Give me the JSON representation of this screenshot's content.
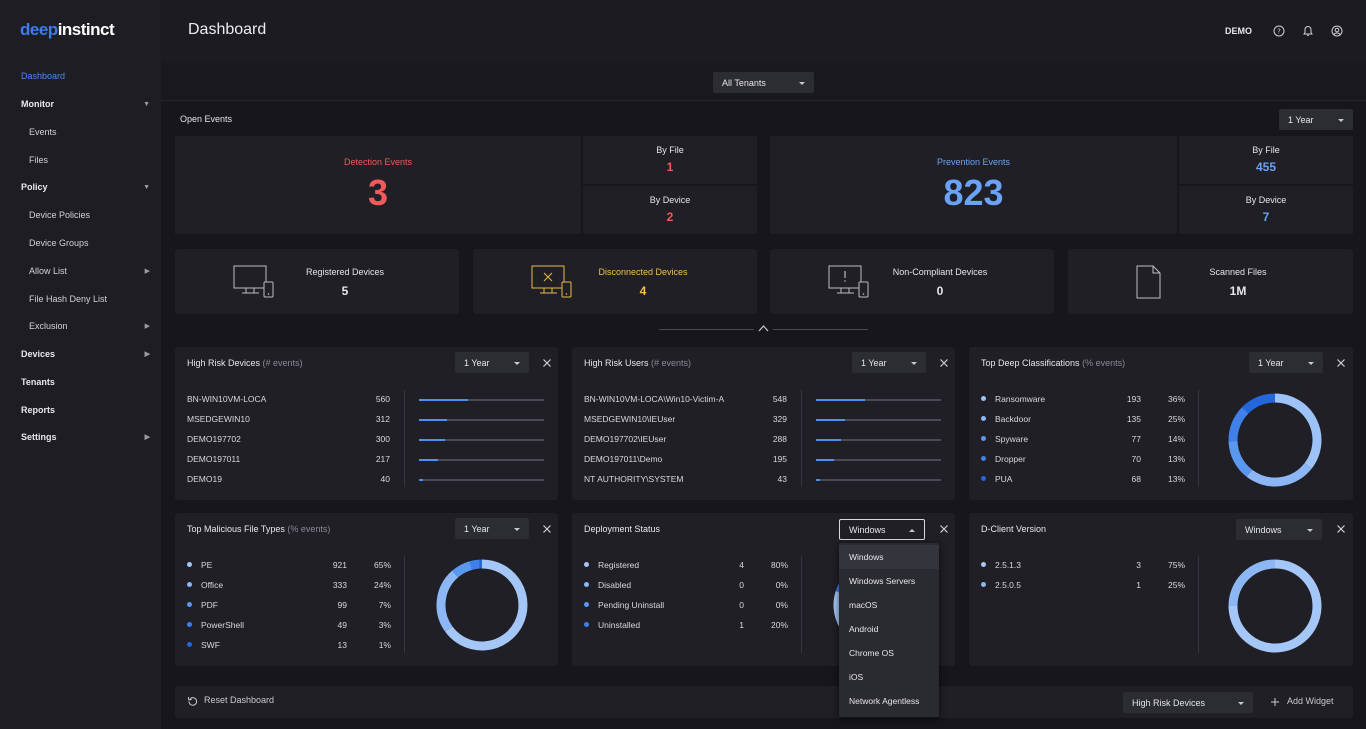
{
  "logo": {
    "part1": "deep",
    "part2": "instinct"
  },
  "sidebar": {
    "items": [
      {
        "label": "Dashboard"
      },
      {
        "label": "Monitor"
      },
      {
        "label": "Events"
      },
      {
        "label": "Files"
      },
      {
        "label": "Policy"
      },
      {
        "label": "Device Policies"
      },
      {
        "label": "Device Groups"
      },
      {
        "label": "Allow List"
      },
      {
        "label": "File Hash Deny List"
      },
      {
        "label": "Exclusion"
      },
      {
        "label": "Devices"
      },
      {
        "label": "Tenants"
      },
      {
        "label": "Reports"
      },
      {
        "label": "Settings"
      }
    ]
  },
  "header": {
    "title": "Dashboard",
    "user": "DEMO",
    "icons": [
      "help-icon",
      "bell-icon",
      "user-icon"
    ]
  },
  "tenant_select": "All Tenants",
  "open_events": {
    "label": "Open Events",
    "range": "1 Year",
    "detection": {
      "label": "Detection Events",
      "value": "3",
      "by_file_label": "By File",
      "by_file": "1",
      "by_device_label": "By Device",
      "by_device": "2"
    },
    "prevention": {
      "label": "Prevention Events",
      "value": "823",
      "by_file_label": "By File",
      "by_file": "455",
      "by_device_label": "By Device",
      "by_device": "7"
    }
  },
  "devices": [
    {
      "label": "Registered Devices",
      "value": "5"
    },
    {
      "label": "Disconnected Devices",
      "value": "4"
    },
    {
      "label": "Non-Compliant Devices",
      "value": "0"
    },
    {
      "label": "Scanned Files",
      "value": "1M"
    }
  ],
  "widgets": {
    "high_risk_devices": {
      "title": "High Risk Devices",
      "sub": "(# events)",
      "range": "1 Year",
      "rows": [
        {
          "name": "BN-WIN10VM-LOCA",
          "count": "560",
          "frac": 0.39
        },
        {
          "name": "MSEDGEWIN10",
          "count": "312",
          "frac": 0.22
        },
        {
          "name": "DEMO197702",
          "count": "300",
          "frac": 0.21
        },
        {
          "name": "DEMO197011",
          "count": "217",
          "frac": 0.15
        },
        {
          "name": "DEMO19",
          "count": "40",
          "frac": 0.03
        }
      ]
    },
    "high_risk_users": {
      "title": "High Risk Users",
      "sub": "(# events)",
      "range": "1 Year",
      "rows": [
        {
          "name": "BN-WIN10VM-LOCA\\Win10-Victim-A",
          "count": "548",
          "frac": 0.39
        },
        {
          "name": "MSEDGEWIN10\\IEUser",
          "count": "329",
          "frac": 0.23
        },
        {
          "name": "DEMO197702\\IEUser",
          "count": "288",
          "frac": 0.2
        },
        {
          "name": "DEMO197011\\Demo",
          "count": "195",
          "frac": 0.14
        },
        {
          "name": "NT AUTHORITY\\SYSTEM",
          "count": "43",
          "frac": 0.03
        }
      ]
    },
    "top_deep": {
      "title": "Top Deep Classifications",
      "sub": "(% events)",
      "range": "1 Year",
      "rows": [
        {
          "name": "Ransomware",
          "count": "193",
          "pct": "36%",
          "color": "#9cc2f7"
        },
        {
          "name": "Backdoor",
          "count": "135",
          "pct": "25%",
          "color": "#8db6f5"
        },
        {
          "name": "Spyware",
          "count": "77",
          "pct": "14%",
          "color": "#5a97ef"
        },
        {
          "name": "Dropper",
          "count": "70",
          "pct": "13%",
          "color": "#3f80ea"
        },
        {
          "name": "PUA",
          "count": "68",
          "pct": "13%",
          "color": "#2466dc"
        }
      ]
    },
    "top_malicious": {
      "title": "Top Malicious File Types",
      "sub": "(% events)",
      "range": "1 Year",
      "rows": [
        {
          "name": "PE",
          "count": "921",
          "pct": "65%",
          "color": "#a5c7f8"
        },
        {
          "name": "Office",
          "count": "333",
          "pct": "24%",
          "color": "#8db6f5"
        },
        {
          "name": "PDF",
          "count": "99",
          "pct": "7%",
          "color": "#5a97ef"
        },
        {
          "name": "PowerShell",
          "count": "49",
          "pct": "3%",
          "color": "#3f80ea"
        },
        {
          "name": "SWF",
          "count": "13",
          "pct": "1%",
          "color": "#2466dc"
        }
      ]
    },
    "deployment": {
      "title": "Deployment Status",
      "os_select": "Windows",
      "rows": [
        {
          "name": "Registered",
          "count": "4",
          "pct": "80%",
          "color": "#a5c7f8"
        },
        {
          "name": "Disabled",
          "count": "0",
          "pct": "0%",
          "color": "#8db6f5"
        },
        {
          "name": "Pending Uninstall",
          "count": "0",
          "pct": "0%",
          "color": "#5a97ef"
        },
        {
          "name": "Uninstalled",
          "count": "1",
          "pct": "20%",
          "color": "#3f80ea"
        }
      ]
    },
    "dclient": {
      "title": "D-Client Version",
      "os_select": "Windows",
      "rows": [
        {
          "name": "2.5.1.3",
          "count": "3",
          "pct": "75%",
          "color": "#a5c7f8"
        },
        {
          "name": "2.5.0.5",
          "count": "1",
          "pct": "25%",
          "color": "#8db6f5"
        }
      ]
    }
  },
  "os_dropdown": [
    "Windows",
    "Windows Servers",
    "macOS",
    "Android",
    "Chrome OS",
    "iOS",
    "Network Agentless"
  ],
  "footer": {
    "reset": "Reset Dashboard",
    "widget_select": "High Risk Devices",
    "add": "Add Widget"
  }
}
